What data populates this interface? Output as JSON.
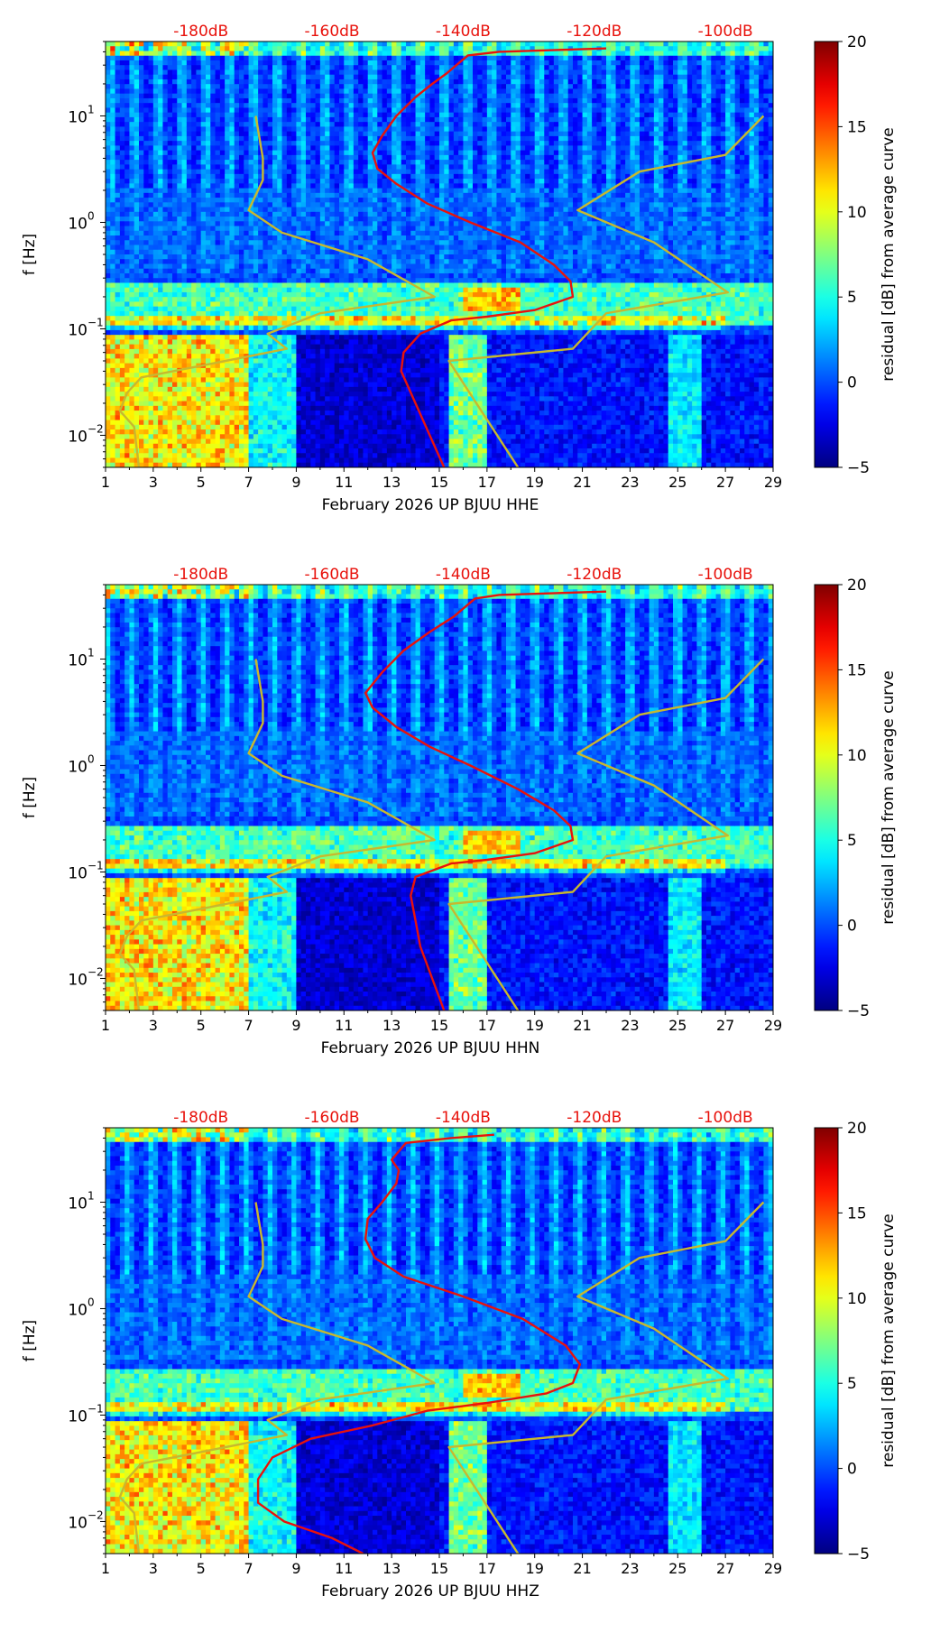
{
  "chart_data": [
    {
      "type": "heatmap",
      "channel": "HHE",
      "xlabel": "February 2026 UP BJUU  HHE",
      "ylabel": "f [Hz]",
      "xlim": [
        1,
        29
      ],
      "ylim": [
        0.005,
        50
      ],
      "yscale": "log",
      "x_ticks": [
        "1",
        "3",
        "5",
        "7",
        "9",
        "11",
        "13",
        "15",
        "17",
        "19",
        "21",
        "23",
        "25",
        "27",
        "29"
      ],
      "y_ticks": [
        {
          "value": 0.01,
          "base": "10",
          "exp": "−2"
        },
        {
          "value": 0.1,
          "base": "10",
          "exp": "−1"
        },
        {
          "value": 1,
          "base": "10",
          "exp": "0"
        },
        {
          "value": 10,
          "base": "10",
          "exp": "1"
        }
      ],
      "db_axis": {
        "labels": [
          "-180dB",
          "-160dB",
          "-140dB",
          "-120dB",
          "-100dB"
        ],
        "day_positions": [
          5,
          10.5,
          16,
          21.5,
          27
        ],
        "color": "#e8120c"
      },
      "colorbar": {
        "label": "residual [dB] from average curve",
        "range": [
          -5,
          20
        ],
        "ticks": [
          "20",
          "15",
          "10",
          "5",
          "0",
          "−5"
        ],
        "colormap": "jet"
      },
      "series": [
        {
          "name": "noise-model",
          "color": "#c8b82e",
          "points": [
            [
              7.3,
              10
            ],
            [
              7.6,
              4
            ],
            [
              7.6,
              2.5
            ],
            [
              7.0,
              1.3
            ],
            [
              8.4,
              0.8
            ],
            [
              12.0,
              0.45
            ],
            [
              14.8,
              0.2
            ],
            [
              10.0,
              0.14
            ],
            [
              7.8,
              0.09
            ],
            [
              8.6,
              0.065
            ],
            [
              5.0,
              0.045
            ],
            [
              2.5,
              0.035
            ],
            [
              1.9,
              0.025
            ],
            [
              1.6,
              0.017
            ],
            [
              2.2,
              0.012
            ],
            [
              2.4,
              0.005
            ]
          ]
        },
        {
          "name": "noise-model",
          "color": "#c8b82e",
          "points": [
            [
              28.6,
              10
            ],
            [
              27.0,
              4.3
            ],
            [
              23.4,
              3.0
            ],
            [
              20.8,
              1.3
            ],
            [
              24.0,
              0.65
            ],
            [
              27.1,
              0.22
            ],
            [
              22.0,
              0.14
            ],
            [
              20.6,
              0.065
            ],
            [
              15.4,
              0.05
            ],
            [
              18.3,
              0.005
            ]
          ]
        },
        {
          "name": "median-psd",
          "color": "#e8120c",
          "points": [
            [
              22,
              43
            ],
            [
              17.5,
              40
            ],
            [
              16.2,
              37
            ],
            [
              15.3,
              25
            ],
            [
              14.7,
              20
            ],
            [
              14.0,
              15
            ],
            [
              13.2,
              10
            ],
            [
              12.6,
              6.5
            ],
            [
              12.2,
              4.5
            ],
            [
              12.4,
              3.2
            ],
            [
              13.2,
              2.3
            ],
            [
              14.5,
              1.5
            ],
            [
              16.3,
              1.0
            ],
            [
              18.4,
              0.65
            ],
            [
              19.8,
              0.4
            ],
            [
              20.5,
              0.28
            ],
            [
              20.6,
              0.2
            ],
            [
              19.0,
              0.15
            ],
            [
              17.0,
              0.13
            ],
            [
              15.5,
              0.12
            ],
            [
              14.2,
              0.09
            ],
            [
              13.5,
              0.06
            ],
            [
              13.4,
              0.04
            ],
            [
              14.0,
              0.02
            ],
            [
              14.6,
              0.01
            ],
            [
              15.2,
              0.005
            ]
          ]
        }
      ]
    },
    {
      "type": "heatmap",
      "channel": "HHN",
      "xlabel": "February 2026 UP BJUU  HHN",
      "ylabel": "f [Hz]",
      "xlim": [
        1,
        29
      ],
      "ylim": [
        0.005,
        50
      ],
      "yscale": "log",
      "x_ticks": [
        "1",
        "3",
        "5",
        "7",
        "9",
        "11",
        "13",
        "15",
        "17",
        "19",
        "21",
        "23",
        "25",
        "27",
        "29"
      ],
      "y_ticks": [
        {
          "value": 0.01,
          "base": "10",
          "exp": "−2"
        },
        {
          "value": 0.1,
          "base": "10",
          "exp": "−1"
        },
        {
          "value": 1,
          "base": "10",
          "exp": "0"
        },
        {
          "value": 10,
          "base": "10",
          "exp": "1"
        }
      ],
      "db_axis": {
        "labels": [
          "-180dB",
          "-160dB",
          "-140dB",
          "-120dB",
          "-100dB"
        ],
        "day_positions": [
          5,
          10.5,
          16,
          21.5,
          27
        ],
        "color": "#e8120c"
      },
      "colorbar": {
        "label": "residual [dB] from average curve",
        "range": [
          -5,
          20
        ],
        "ticks": [
          "20",
          "15",
          "10",
          "5",
          "0",
          "−5"
        ],
        "colormap": "jet"
      },
      "series": [
        {
          "name": "noise-model",
          "color": "#c8b82e",
          "points": [
            [
              7.3,
              10
            ],
            [
              7.6,
              4
            ],
            [
              7.6,
              2.5
            ],
            [
              7.0,
              1.3
            ],
            [
              8.4,
              0.8
            ],
            [
              12.0,
              0.45
            ],
            [
              14.8,
              0.2
            ],
            [
              10.0,
              0.14
            ],
            [
              7.8,
              0.09
            ],
            [
              8.6,
              0.065
            ],
            [
              5.0,
              0.045
            ],
            [
              2.5,
              0.035
            ],
            [
              1.9,
              0.025
            ],
            [
              1.6,
              0.017
            ],
            [
              2.2,
              0.012
            ],
            [
              2.4,
              0.005
            ]
          ]
        },
        {
          "name": "noise-model",
          "color": "#c8b82e",
          "points": [
            [
              28.6,
              10
            ],
            [
              27.0,
              4.3
            ],
            [
              23.4,
              3.0
            ],
            [
              20.8,
              1.3
            ],
            [
              24.0,
              0.65
            ],
            [
              27.1,
              0.22
            ],
            [
              22.0,
              0.14
            ],
            [
              20.6,
              0.065
            ],
            [
              15.4,
              0.05
            ],
            [
              18.3,
              0.005
            ]
          ]
        },
        {
          "name": "median-psd",
          "color": "#e8120c",
          "points": [
            [
              22,
              43
            ],
            [
              17.5,
              40
            ],
            [
              16.5,
              37
            ],
            [
              15.6,
              25
            ],
            [
              14.6,
              18
            ],
            [
              13.5,
              12
            ],
            [
              12.6,
              7.5
            ],
            [
              11.9,
              4.8
            ],
            [
              12.2,
              3.5
            ],
            [
              13.2,
              2.3
            ],
            [
              14.6,
              1.5
            ],
            [
              16.3,
              1.0
            ],
            [
              18.3,
              0.6
            ],
            [
              19.8,
              0.38
            ],
            [
              20.5,
              0.27
            ],
            [
              20.6,
              0.2
            ],
            [
              19.0,
              0.15
            ],
            [
              17.0,
              0.13
            ],
            [
              15.5,
              0.12
            ],
            [
              14.0,
              0.09
            ],
            [
              13.8,
              0.06
            ],
            [
              14.0,
              0.035
            ],
            [
              14.2,
              0.02
            ],
            [
              14.7,
              0.01
            ],
            [
              15.2,
              0.005
            ]
          ]
        }
      ]
    },
    {
      "type": "heatmap",
      "channel": "HHZ",
      "xlabel": "February 2026 UP BJUU  HHZ",
      "ylabel": "f [Hz]",
      "xlim": [
        1,
        29
      ],
      "ylim": [
        0.005,
        50
      ],
      "yscale": "log",
      "x_ticks": [
        "1",
        "3",
        "5",
        "7",
        "9",
        "11",
        "13",
        "15",
        "17",
        "19",
        "21",
        "23",
        "25",
        "27",
        "29"
      ],
      "y_ticks": [
        {
          "value": 0.01,
          "base": "10",
          "exp": "−2"
        },
        {
          "value": 0.1,
          "base": "10",
          "exp": "−1"
        },
        {
          "value": 1,
          "base": "10",
          "exp": "0"
        },
        {
          "value": 10,
          "base": "10",
          "exp": "1"
        }
      ],
      "db_axis": {
        "labels": [
          "-180dB",
          "-160dB",
          "-140dB",
          "-120dB",
          "-100dB"
        ],
        "day_positions": [
          5,
          10.5,
          16,
          21.5,
          27
        ],
        "color": "#e8120c"
      },
      "colorbar": {
        "label": "residual [dB] from average curve",
        "range": [
          -5,
          20
        ],
        "ticks": [
          "20",
          "15",
          "10",
          "5",
          "0",
          "−5"
        ],
        "colormap": "jet"
      },
      "series": [
        {
          "name": "noise-model",
          "color": "#c8b82e",
          "points": [
            [
              7.3,
              10
            ],
            [
              7.6,
              4
            ],
            [
              7.6,
              2.5
            ],
            [
              7.0,
              1.3
            ],
            [
              8.4,
              0.8
            ],
            [
              12.0,
              0.45
            ],
            [
              14.8,
              0.2
            ],
            [
              10.0,
              0.14
            ],
            [
              7.8,
              0.09
            ],
            [
              8.6,
              0.065
            ],
            [
              5.0,
              0.045
            ],
            [
              2.5,
              0.035
            ],
            [
              1.9,
              0.025
            ],
            [
              1.6,
              0.017
            ],
            [
              2.2,
              0.012
            ],
            [
              2.4,
              0.005
            ]
          ]
        },
        {
          "name": "noise-model",
          "color": "#c8b82e",
          "points": [
            [
              28.6,
              10
            ],
            [
              27.0,
              4.3
            ],
            [
              23.4,
              3.0
            ],
            [
              20.8,
              1.3
            ],
            [
              24.0,
              0.65
            ],
            [
              27.1,
              0.22
            ],
            [
              22.0,
              0.14
            ],
            [
              20.6,
              0.065
            ],
            [
              15.4,
              0.05
            ],
            [
              18.3,
              0.005
            ]
          ]
        },
        {
          "name": "median-psd",
          "color": "#e8120c",
          "points": [
            [
              17.3,
              43
            ],
            [
              15.5,
              40
            ],
            [
              13.6,
              36
            ],
            [
              13.0,
              25
            ],
            [
              13.3,
              20
            ],
            [
              13.2,
              15
            ],
            [
              12.6,
              10
            ],
            [
              12.0,
              7
            ],
            [
              11.9,
              4.5
            ],
            [
              12.3,
              3.0
            ],
            [
              13.5,
              2.0
            ],
            [
              16.0,
              1.3
            ],
            [
              18.5,
              0.8
            ],
            [
              20.3,
              0.45
            ],
            [
              20.9,
              0.3
            ],
            [
              20.6,
              0.2
            ],
            [
              19.5,
              0.16
            ],
            [
              17.0,
              0.13
            ],
            [
              14.5,
              0.11
            ],
            [
              12.2,
              0.08
            ],
            [
              9.6,
              0.06
            ],
            [
              8.0,
              0.04
            ],
            [
              7.4,
              0.025
            ],
            [
              7.4,
              0.015
            ],
            [
              8.5,
              0.01
            ],
            [
              10.5,
              0.007
            ],
            [
              11.8,
              0.005
            ]
          ]
        }
      ]
    }
  ]
}
